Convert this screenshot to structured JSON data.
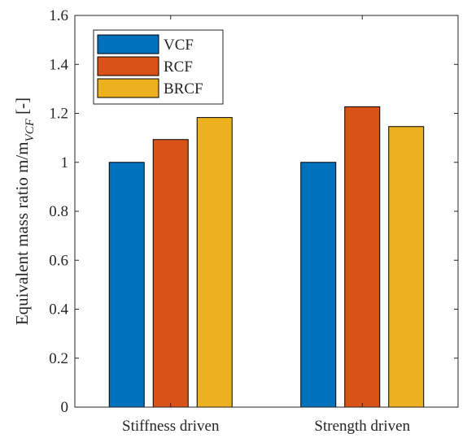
{
  "chart_data": {
    "type": "bar",
    "title": "",
    "xlabel": "",
    "ylabel": "Equivalent mass ratio m/m",
    "ylabel_sub": "VCF",
    "ylabel_suffix": " [-]",
    "categories": [
      "Stiffness driven",
      "Strength driven"
    ],
    "series": [
      {
        "name": "VCF",
        "values": [
          1.0,
          1.0
        ],
        "color": "#0072BD"
      },
      {
        "name": "RCF",
        "values": [
          1.093,
          1.227
        ],
        "color": "#D95319"
      },
      {
        "name": "BRCF",
        "values": [
          1.183,
          1.146
        ],
        "color": "#EDB120"
      }
    ],
    "ylim": [
      0,
      1.6
    ],
    "yticks": [
      "0",
      "0.2",
      "0.4",
      "0.6",
      "0.8",
      "1",
      "1.2",
      "1.4",
      "1.6"
    ],
    "grid": false,
    "legend_position": "top-left"
  }
}
